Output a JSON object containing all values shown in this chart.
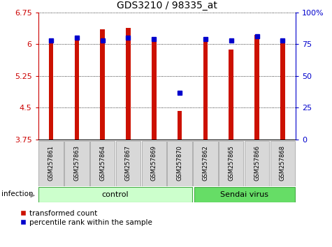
{
  "title": "GDS3210 / 98335_at",
  "samples": [
    "GSM257861",
    "GSM257863",
    "GSM257864",
    "GSM257867",
    "GSM257869",
    "GSM257870",
    "GSM257862",
    "GSM257865",
    "GSM257866",
    "GSM257868"
  ],
  "red_values": [
    6.12,
    6.18,
    6.35,
    6.38,
    6.12,
    4.42,
    6.12,
    5.88,
    6.22,
    6.1
  ],
  "blue_percentile": [
    78,
    80,
    78,
    80,
    79,
    37,
    79,
    78,
    81,
    78
  ],
  "ylim": [
    3.75,
    6.75
  ],
  "yticks": [
    3.75,
    4.5,
    5.25,
    6.0,
    6.75
  ],
  "ytick_labels": [
    "3.75",
    "4.5",
    "5.25",
    "6",
    "6.75"
  ],
  "y2ticks": [
    0,
    25,
    50,
    75,
    100
  ],
  "y2tick_labels": [
    "0",
    "25",
    "50",
    "75",
    "100%"
  ],
  "left_axis_color": "#cc0000",
  "right_axis_color": "#0000cc",
  "bar_color": "#cc1100",
  "dot_color": "#0000cc",
  "n_control": 6,
  "n_sendai": 4,
  "control_label": "control",
  "sendai_label": "Sendai virus",
  "infection_label": "infection",
  "legend_red": "transformed count",
  "legend_blue": "percentile rank within the sample",
  "control_bg": "#ccffcc",
  "sendai_bg": "#66dd66",
  "sample_box_bg": "#d8d8d8",
  "sample_box_edge": "#999999",
  "group_edge": "#44aa44",
  "bar_width": 0.18
}
